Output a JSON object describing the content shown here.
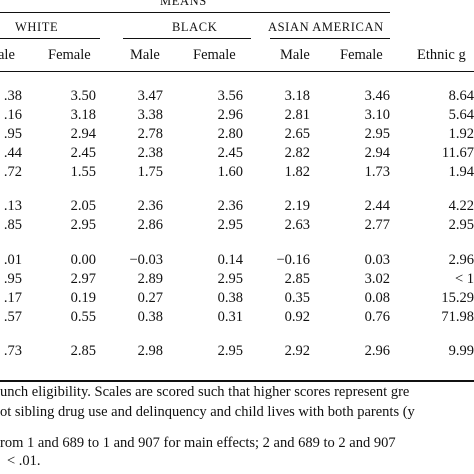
{
  "header": {
    "means": "MEANS",
    "groups": [
      "WHITE",
      "BLACK",
      "ASIAN AMERICAN"
    ],
    "subheaders": [
      "ale",
      "Female",
      "Male",
      "Female",
      "Male",
      "Female",
      "Ethnic g"
    ]
  },
  "rows": [
    [
      ".38",
      "3.50",
      "3.47",
      "3.56",
      "3.18",
      "3.46",
      "8.64"
    ],
    [
      ".16",
      "3.18",
      "3.38",
      "2.96",
      "2.81",
      "3.10",
      "5.64"
    ],
    [
      ".95",
      "2.94",
      "2.78",
      "2.80",
      "2.65",
      "2.95",
      "1.92"
    ],
    [
      ".44",
      "2.45",
      "2.38",
      "2.45",
      "2.82",
      "2.94",
      "11.67"
    ],
    [
      ".72",
      "1.55",
      "1.75",
      "1.60",
      "1.82",
      "1.73",
      "1.94"
    ],
    [
      ".13",
      "2.05",
      "2.36",
      "2.36",
      "2.19",
      "2.44",
      "4.22"
    ],
    [
      ".85",
      "2.95",
      "2.86",
      "2.95",
      "2.63",
      "2.77",
      "2.95"
    ],
    [
      ".01",
      "0.00",
      "−0.03",
      "0.14",
      "−0.16",
      "0.03",
      "2.96"
    ],
    [
      ".95",
      "2.97",
      "2.89",
      "2.95",
      "2.85",
      "3.02",
      "< 1"
    ],
    [
      ".17",
      "0.19",
      "0.27",
      "0.38",
      "0.35",
      "0.08",
      "15.29"
    ],
    [
      ".57",
      "0.55",
      "0.38",
      "0.31",
      "0.92",
      "0.76",
      "71.98"
    ],
    [
      ".73",
      "2.85",
      "2.98",
      "2.95",
      "2.92",
      "2.96",
      "9.99"
    ]
  ],
  "footnotes": [
    "unch eligibility. Scales are scored such that higher scores represent gre",
    "ot sibling drug use and delinquency and child lives with both parents (y",
    "rom 1 and 689 to 1 and 907 for main effects; 2 and 689 to 2 and 907",
    "< .01."
  ]
}
